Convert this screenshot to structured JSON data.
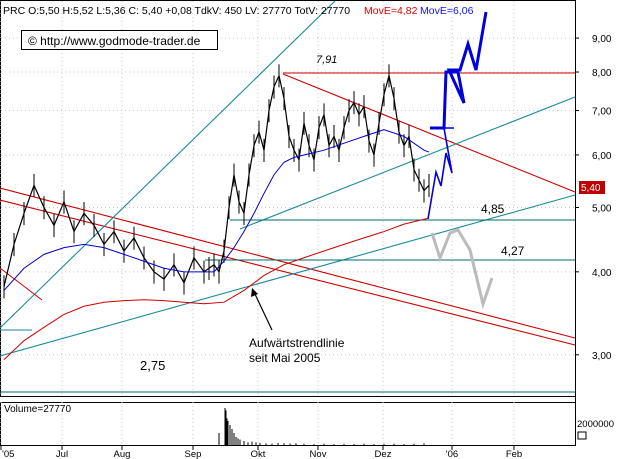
{
  "header": {
    "quote": "PRC O:5,50 H:5,52 L:5,36 C: 5,40 +0,08 TdkV: 450 LV: 27770 TotV: 27770",
    "move_e1": "MovE=4,82",
    "move_e2": "MovE=6,06"
  },
  "copyright": "© http://www.godmode-trader.de",
  "volume_label": "Volume=27770",
  "colors": {
    "price": "#000000",
    "ma_short": "#0000cc",
    "ma_long": "#cc0000",
    "channel_red": "#cc0000",
    "trend_teal": "#1a8a9a",
    "support": "#006b6b",
    "scenario_up": "#0000dd",
    "scenario_down": "#bbbbbb",
    "last_price_box": "#c00000"
  },
  "annotations": {
    "high_label": "7,91",
    "support_1": "4,85",
    "support_2": "4,27",
    "low_label": "2,75",
    "trendline_note_line1": "Aufwärtstrendlinie",
    "trendline_note_line2": "seit Mai 2005",
    "last_price": "5,40"
  },
  "chart_data": {
    "type": "line",
    "title": "",
    "scale": "log",
    "ylim": [
      2.6,
      10.2
    ],
    "y_ticks": [
      "9,00",
      "8,00",
      "7,00",
      "6,00",
      "5,00",
      "4,00",
      "3,00"
    ],
    "x_ticks": [
      "'05",
      "Jul",
      "Aug",
      "Sep",
      "Okt",
      "Nov",
      "Dez",
      "'06",
      "Feb"
    ],
    "series": [
      {
        "key": "price",
        "x": [
          0,
          10,
          20,
          30,
          40,
          50,
          60,
          70,
          80,
          90,
          100,
          110,
          120,
          130,
          140,
          150,
          160,
          170,
          180,
          190,
          200,
          205,
          210,
          215,
          220,
          225,
          230,
          235,
          240,
          245,
          250,
          255,
          260,
          265,
          270,
          275,
          280,
          285,
          290,
          295,
          300,
          305,
          310,
          315,
          320,
          325,
          330,
          335,
          340,
          345,
          350,
          355,
          360,
          365,
          370,
          375,
          380,
          385,
          390,
          395,
          400,
          405,
          410,
          415,
          420,
          425
        ],
        "values": [
          3.8,
          4.4,
          4.9,
          5.4,
          5.0,
          4.7,
          5.1,
          4.6,
          4.9,
          4.7,
          4.4,
          4.6,
          4.3,
          4.5,
          4.2,
          4.0,
          3.9,
          4.1,
          3.85,
          4.2,
          4.0,
          4.05,
          4.1,
          4.0,
          4.3,
          5.0,
          5.6,
          5.1,
          4.9,
          5.6,
          6.2,
          6.5,
          6.1,
          7.0,
          7.6,
          7.9,
          7.3,
          6.4,
          6.1,
          5.9,
          6.7,
          6.2,
          5.9,
          6.6,
          6.9,
          6.2,
          6.4,
          6.1,
          6.6,
          7.0,
          7.2,
          6.9,
          7.1,
          6.3,
          6.0,
          6.7,
          7.4,
          7.9,
          7.3,
          6.5,
          6.2,
          6.4,
          5.7,
          5.5,
          5.3,
          5.4
        ]
      },
      {
        "key": "ma_short",
        "x": [
          0,
          20,
          40,
          60,
          80,
          100,
          120,
          140,
          160,
          180,
          200,
          210,
          220,
          230,
          240,
          250,
          260,
          270,
          280,
          290,
          300,
          320,
          340,
          360,
          380,
          400,
          420,
          425
        ],
        "values": [
          3.75,
          4.05,
          4.25,
          4.35,
          4.4,
          4.35,
          4.25,
          4.15,
          4.05,
          4.0,
          4.0,
          4.0,
          4.15,
          4.35,
          4.6,
          4.9,
          5.25,
          5.6,
          5.85,
          5.95,
          6.0,
          6.1,
          6.25,
          6.4,
          6.55,
          6.4,
          6.1,
          6.06
        ]
      },
      {
        "key": "ma_long",
        "x": [
          0,
          20,
          40,
          60,
          80,
          100,
          120,
          140,
          160,
          180,
          200,
          220,
          240,
          260,
          280,
          300,
          320,
          340,
          360,
          380,
          400,
          420,
          425
        ],
        "values": [
          2.95,
          3.15,
          3.3,
          3.45,
          3.55,
          3.6,
          3.62,
          3.63,
          3.62,
          3.6,
          3.58,
          3.6,
          3.75,
          3.95,
          4.1,
          4.2,
          4.3,
          4.4,
          4.5,
          4.6,
          4.72,
          4.8,
          4.82
        ]
      }
    ],
    "volume": {
      "x": [
        215,
        221,
        222,
        223,
        224,
        226,
        228,
        230,
        232,
        234,
        236,
        240,
        244,
        248,
        252,
        256,
        262,
        268,
        274,
        280,
        286,
        292,
        300,
        310,
        320,
        330,
        340,
        350,
        360,
        370,
        380,
        390,
        400,
        410,
        420
      ],
      "values": [
        9000,
        27770,
        26000,
        20000,
        18000,
        15000,
        12000,
        9000,
        6000,
        5000,
        4000,
        3000,
        2000,
        2500,
        2000,
        1500,
        1200,
        1000,
        1500,
        1200,
        1000,
        1300,
        800,
        700,
        900,
        600,
        800,
        700,
        900,
        600,
        800,
        1000,
        700,
        900,
        1200
      ],
      "ylim": [
        0,
        30000
      ],
      "y_tick": "2000000"
    }
  }
}
